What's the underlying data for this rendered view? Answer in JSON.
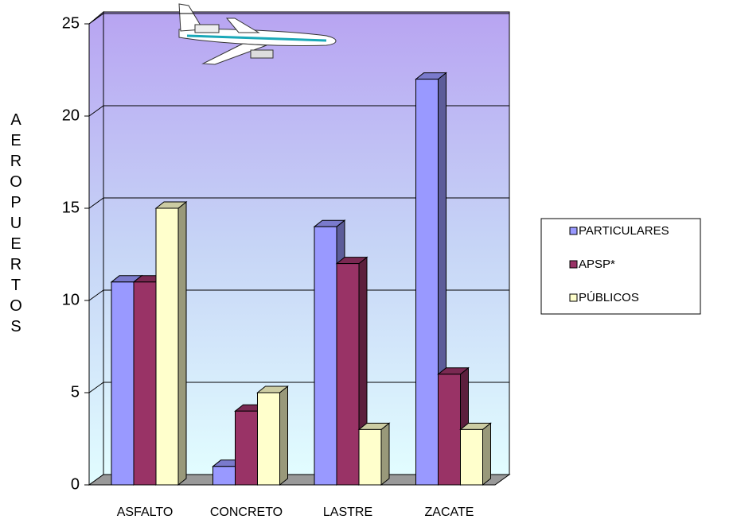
{
  "chart_data": {
    "type": "bar3d",
    "y_label": "AEROPUERTOS",
    "categories": [
      "ASFALTO",
      "CONCRETO",
      "LASTRE",
      "ZACATE"
    ],
    "series": [
      {
        "name": "PARTICULARES",
        "color": "#9999ff",
        "values": [
          11,
          1,
          14,
          22
        ]
      },
      {
        "name": "APSP*",
        "color": "#993366",
        "values": [
          11,
          4,
          12,
          6
        ]
      },
      {
        "name": "PÚBLICOS",
        "color": "#ffffcc",
        "values": [
          15,
          5,
          3,
          3
        ]
      }
    ],
    "ylim": [
      0,
      25
    ],
    "yticks": [
      0,
      5,
      10,
      15,
      20,
      25
    ],
    "grid": true,
    "legend": "right"
  }
}
